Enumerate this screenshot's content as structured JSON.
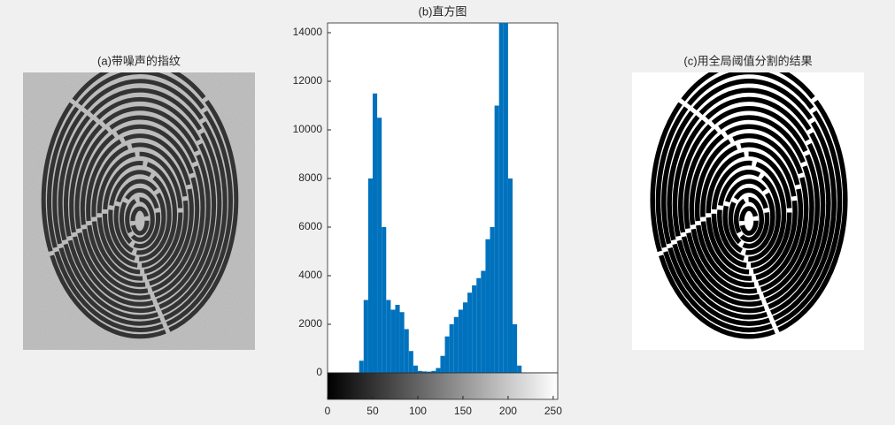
{
  "chart_data": [
    {
      "type": "image",
      "title": "(a)带噪声的指纹"
    },
    {
      "type": "histogram",
      "title": "(b)直方图",
      "bins": [
        0,
        5,
        10,
        15,
        20,
        25,
        30,
        35,
        40,
        45,
        50,
        55,
        60,
        65,
        70,
        75,
        80,
        85,
        90,
        95,
        100,
        105,
        110,
        115,
        120,
        125,
        130,
        135,
        140,
        145,
        150,
        155,
        160,
        165,
        170,
        175,
        180,
        185,
        190,
        195,
        200,
        205,
        210,
        215,
        220,
        225,
        230,
        235,
        240,
        245,
        250,
        255
      ],
      "counts": [
        0,
        0,
        0,
        0,
        0,
        0,
        0,
        500,
        3000,
        8000,
        11500,
        10500,
        6000,
        3000,
        2600,
        2800,
        2500,
        1800,
        900,
        300,
        80,
        60,
        50,
        80,
        200,
        700,
        1500,
        2000,
        2300,
        2600,
        2900,
        3300,
        3600,
        3900,
        4200,
        5500,
        6000,
        11000,
        15000,
        15000,
        8000,
        2000,
        300,
        0,
        0,
        0,
        0,
        0,
        0,
        0,
        0
      ],
      "color": "#0072bd",
      "xlim": [
        0,
        255
      ],
      "ylim": [
        0,
        14400
      ],
      "xticks": [
        0,
        50,
        100,
        150,
        200,
        250
      ],
      "yticks": [
        0,
        2000,
        4000,
        6000,
        8000,
        10000,
        12000,
        14000
      ]
    },
    {
      "type": "image",
      "title": "(c)用全局阈值分割的结果"
    }
  ]
}
